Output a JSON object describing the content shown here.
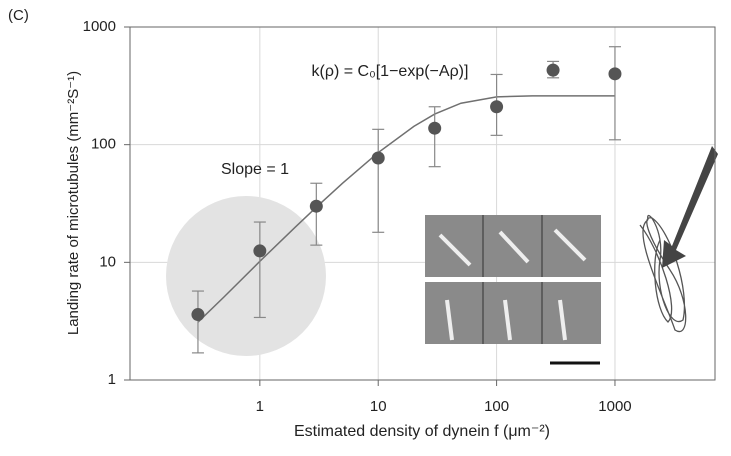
{
  "chart_data": {
    "type": "scatter",
    "panel_label": "(C)",
    "xlabel": "Estimated density of dynein f (μm⁻²)",
    "ylabel": "Landing rate of microtubules (mm⁻²S⁻¹)",
    "annotations": [
      "k(ρ) = C₀[1−exp(−Aρ)]",
      "Slope = 1"
    ],
    "log_x": true,
    "log_y": true,
    "grid": true,
    "xlim": [
      0.08,
      7000
    ],
    "ylim": [
      1,
      1000
    ],
    "xticks": [
      1,
      10,
      100,
      1000
    ],
    "yticks": [
      1,
      10,
      100,
      1000
    ],
    "x": [
      0.3,
      1,
      3,
      10,
      30,
      100,
      300,
      1000
    ],
    "values": [
      3.6,
      12.5,
      30,
      77,
      138,
      210,
      430,
      400
    ],
    "lower": [
      1.7,
      3.4,
      14,
      18,
      65,
      120,
      370,
      110
    ],
    "upper": [
      5.7,
      22,
      47,
      135,
      210,
      395,
      510,
      680
    ],
    "color": "#555555",
    "fit": {
      "color": "#707070",
      "x": [
        0.3,
        0.5,
        1,
        2,
        3,
        5,
        10,
        20,
        30,
        50,
        100,
        200,
        1000
      ],
      "values": [
        3.1,
        5.1,
        10.2,
        20,
        29.4,
        47.1,
        85.7,
        143,
        182,
        225,
        255,
        260,
        260
      ]
    }
  }
}
